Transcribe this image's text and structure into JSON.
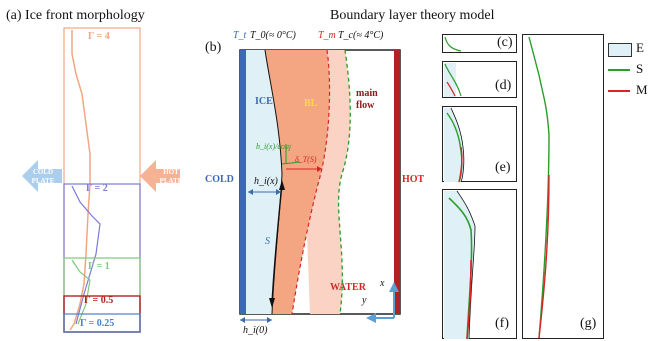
{
  "panel_a": {
    "title": "(a) Ice front morphology",
    "gamma_labels": [
      "Γ = 4",
      "Γ = 2",
      "Γ = 1",
      "Γ = 0.5",
      "Γ = 0.25"
    ],
    "cold_plate": "COLD PLATE",
    "hot_plate": "HOT PLATE"
  },
  "panel_b": {
    "title": "Boundary layer theory model",
    "label": "(b)",
    "tt": "T_t",
    "t0": "T_0(≈ 0°C)",
    "tm": "T_m",
    "tc": "T_c(≈ 4°C)",
    "ice": "ICE",
    "bl": "BL",
    "main_flow": "main flow",
    "cold": "COLD",
    "hot": "HOT",
    "water": "WATER",
    "hi_cos": "h_i(x)/cosγ",
    "delta_s": "δ_T(S)",
    "hi_x": "h_i(x)",
    "s": "S",
    "x": "x",
    "y": "y",
    "hi0": "h_i(0)"
  },
  "panels_cg": [
    "(c)",
    "(d)",
    "(e)",
    "(f)",
    "(g)"
  ],
  "legend": {
    "items": [
      "E",
      "S",
      "M"
    ],
    "colors": {
      "E": "#dff0f7",
      "S": "#2a9d2a",
      "M": "#d62728"
    }
  }
}
